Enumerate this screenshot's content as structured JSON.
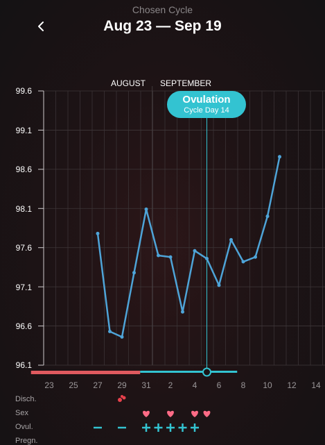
{
  "header": {
    "subtitle": "Chosen Cycle",
    "title": "Aug 23 — Sep 19",
    "back_icon": "chevron-left-icon"
  },
  "colors": {
    "line": "#4ea4d8",
    "ovulation": "#33c3d1",
    "period": "#e05a5f",
    "heart": "#ff6b86",
    "discharge": "#e8414c"
  },
  "ovulation_marker": {
    "title": "Ovulation",
    "subtitle": "Cycle Day 14",
    "date": "Sep 5"
  },
  "months": [
    "AUGUST",
    "SEPTEMBER"
  ],
  "x_tick_labels": [
    "23",
    "25",
    "27",
    "29",
    "31",
    "2",
    "4",
    "6",
    "8",
    "10",
    "12",
    "14"
  ],
  "y_tick_labels": [
    "99.6",
    "99.1",
    "98.6",
    "98.1",
    "97.6",
    "97.1",
    "96.6",
    "96.1"
  ],
  "row_labels": {
    "discharge": "Disch.",
    "sex": "Sex",
    "ovulation": "Ovul.",
    "pregnancy": "Pregn."
  },
  "chart_data": {
    "type": "line",
    "xlabel": "",
    "ylabel": "",
    "ylim": [
      96.1,
      99.6
    ],
    "grid": true,
    "x": [
      "Aug 27",
      "Aug 28",
      "Aug 29",
      "Aug 30",
      "Aug 31",
      "Sep 1",
      "Sep 2",
      "Sep 3",
      "Sep 4",
      "Sep 5",
      "Sep 6",
      "Sep 7",
      "Sep 8",
      "Sep 9",
      "Sep 10",
      "Sep 11"
    ],
    "series": [
      {
        "values": [
          97.78,
          96.53,
          96.46,
          97.28,
          98.09,
          97.5,
          97.48,
          96.78,
          97.56,
          97.46,
          97.12,
          97.7,
          97.42,
          97.48,
          98.0,
          98.76
        ]
      }
    ],
    "period_days": [
      "Aug 22",
      "Aug 23",
      "Aug 24",
      "Aug 25",
      "Aug 26",
      "Aug 27",
      "Aug 28",
      "Aug 29",
      "Aug 30"
    ],
    "fertile_days": [
      "Aug 31",
      "Sep 1",
      "Sep 2",
      "Sep 3",
      "Sep 4",
      "Sep 5",
      "Sep 6",
      "Sep 7"
    ],
    "discharge_days": [
      "Aug 29"
    ],
    "sex_days": [
      "Aug 31",
      "Sep 2",
      "Sep 4",
      "Sep 5"
    ],
    "ovulation_test": [
      {
        "day": "Aug 27",
        "result": "negative"
      },
      {
        "day": "Aug 29",
        "result": "negative"
      },
      {
        "day": "Aug 31",
        "result": "positive"
      },
      {
        "day": "Sep 1",
        "result": "positive"
      },
      {
        "day": "Sep 2",
        "result": "positive"
      },
      {
        "day": "Sep 3",
        "result": "positive"
      },
      {
        "day": "Sep 4",
        "result": "positive"
      }
    ]
  }
}
